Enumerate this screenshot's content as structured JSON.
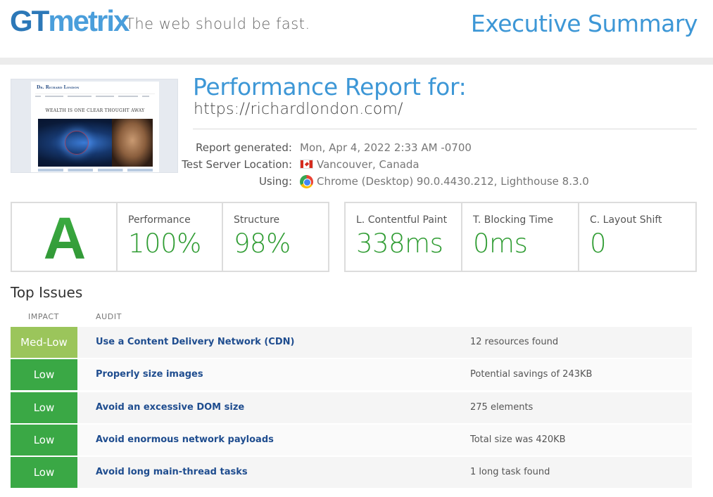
{
  "header": {
    "logo": {
      "gt": "GT",
      "metrix": "metrix"
    },
    "tagline": "The web should be fast.",
    "title": "Executive Summary"
  },
  "report": {
    "title": "Performance Report for:",
    "url": "https://richardlondon.com/",
    "thumbnail": {
      "site_name": "Dr. Richard London",
      "motto": "WEALTH IS ONE CLEAR THOUGHT AWAY"
    },
    "meta": [
      {
        "label": "Report generated:",
        "value": "Mon, Apr 4, 2022 2:33 AM -0700",
        "icon": ""
      },
      {
        "label": "Test Server Location:",
        "value": "Vancouver, Canada",
        "icon": "canada-flag-icon"
      },
      {
        "label": "Using:",
        "value": "Chrome (Desktop) 90.0.4430.212, Lighthouse 8.3.0",
        "icon": "chrome-icon"
      }
    ]
  },
  "scores": {
    "grade": "A",
    "grade_color": "#38a53b",
    "metrics": [
      {
        "label": "Performance",
        "value": "100%"
      },
      {
        "label": "Structure",
        "value": "98%"
      }
    ],
    "vitals": [
      {
        "label": "L. Contentful Paint",
        "value": "338ms"
      },
      {
        "label": "T. Blocking Time",
        "value": "0ms"
      },
      {
        "label": "C. Layout Shift",
        "value": "0"
      }
    ],
    "value_color": "#2f9c32"
  },
  "issues": {
    "title": "Top Issues",
    "columns": {
      "impact": "IMPACT",
      "audit": "AUDIT"
    },
    "rows": [
      {
        "impact": "Med-Low",
        "level": "medlow",
        "audit": "Use a Content Delivery Network (CDN)",
        "detail": "12 resources found"
      },
      {
        "impact": "Low",
        "level": "low",
        "audit": "Properly size images",
        "detail": "Potential savings of 243KB"
      },
      {
        "impact": "Low",
        "level": "low",
        "audit": "Avoid an excessive DOM size",
        "detail": "275 elements"
      },
      {
        "impact": "Low",
        "level": "low",
        "audit": "Avoid enormous network payloads",
        "detail": "Total size was 420KB"
      },
      {
        "impact": "Low",
        "level": "low",
        "audit": "Avoid long main-thread tasks",
        "detail": "1 long task found"
      }
    ],
    "colors": {
      "medlow": "#9bc55b",
      "low": "#3aa845",
      "audit_link": "#1f4d8f"
    }
  }
}
